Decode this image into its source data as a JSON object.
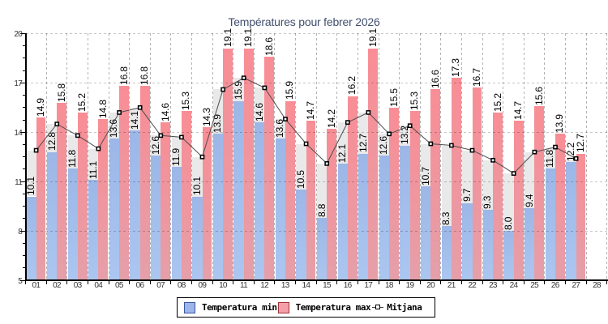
{
  "title": "Températures pour febrer 2026",
  "chart_data": {
    "type": "bar",
    "title": "Températures pour febrer 2026",
    "categories": [
      "01",
      "02",
      "03",
      "04",
      "05",
      "06",
      "07",
      "08",
      "09",
      "10",
      "11",
      "12",
      "13",
      "14",
      "15",
      "16",
      "17",
      "18",
      "19",
      "20",
      "21",
      "22",
      "23",
      "24",
      "25",
      "26",
      "27",
      "28"
    ],
    "series": [
      {
        "name": "Temperatura min",
        "type": "bar",
        "values": [
          10.1,
          12.8,
          11.8,
          11.1,
          13.6,
          14.1,
          12.6,
          11.9,
          10.1,
          13.9,
          15.9,
          14.6,
          13.6,
          10.5,
          8.8,
          12.1,
          12.7,
          12.6,
          13.2,
          10.7,
          8.3,
          9.7,
          9.3,
          8.0,
          9.4,
          11.8,
          12.2,
          null
        ]
      },
      {
        "name": "Temperatura max",
        "type": "bar",
        "values": [
          14.9,
          15.8,
          15.2,
          14.8,
          16.8,
          16.8,
          14.6,
          15.3,
          14.3,
          19.1,
          19.1,
          18.6,
          15.9,
          14.7,
          14.2,
          16.2,
          19.1,
          15.5,
          15.3,
          16.6,
          17.3,
          16.7,
          15.2,
          14.7,
          15.6,
          13.9,
          12.7,
          null
        ]
      },
      {
        "name": "Mitjana",
        "type": "line",
        "values": [
          12.9,
          14.5,
          13.8,
          13.0,
          15.2,
          15.5,
          13.8,
          13.7,
          12.5,
          16.6,
          17.3,
          16.7,
          14.8,
          13.3,
          12.1,
          14.6,
          15.2,
          13.9,
          14.4,
          13.3,
          13.2,
          12.9,
          12.3,
          11.5,
          12.8,
          13.1,
          12.4,
          null
        ]
      }
    ],
    "xlabel": "",
    "ylabel": "",
    "ylim": [
      5,
      20
    ],
    "yticks": [
      5,
      8,
      11,
      14,
      17,
      20
    ],
    "grid": true,
    "legend_position": "bottom-center",
    "value_labels": "one-decimal, rotated 90°, above each bar"
  },
  "colors": {
    "title": "#42506e",
    "bar_min_top": "#9cb7e7",
    "bar_min_bottom": "#abc6f0",
    "bar_max_top": "#f98d95",
    "bar_max_bottom": "#e59fa9",
    "bar_mean_range": "#e9e9e9",
    "line": "#4d4d4d",
    "marker_fill": "#ffffff",
    "marker_border": "#000000",
    "grid": "rgba(0,0,0,0.22)",
    "axis": "#000000",
    "legend_swatch_min_border": "#3b57a0",
    "legend_swatch_max_border": "#a03038",
    "legend_swatch_max_fill": "#f5a0a8",
    "legend_swatch_min_fill": "#9db5e8"
  },
  "legend": {
    "items": [
      {
        "label": "Temperatura min",
        "swatch": "blue-square"
      },
      {
        "label": "Temperatura max",
        "swatch": "red-square"
      },
      {
        "label": "Mitjana",
        "swatch": "line-marker"
      }
    ]
  }
}
